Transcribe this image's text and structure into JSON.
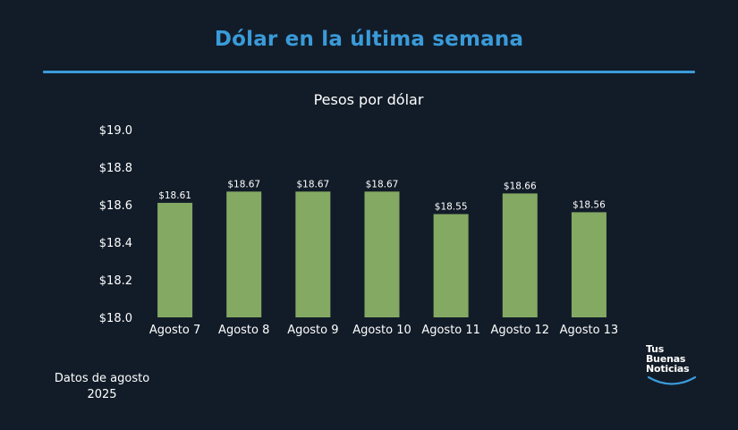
{
  "title": "Dólar en la última semana",
  "colors": {
    "background": "#121c28",
    "accent": "#3a9bd9",
    "bar": "#84a963",
    "text": "#ffffff"
  },
  "chart_data": {
    "type": "bar",
    "title": "Pesos por dólar",
    "xlabel": "",
    "ylabel": "",
    "categories": [
      "Agosto 7",
      "Agosto 8",
      "Agosto 9",
      "Agosto 10",
      "Agosto 11",
      "Agosto 12",
      "Agosto 13"
    ],
    "values": [
      18.61,
      18.67,
      18.67,
      18.67,
      18.55,
      18.66,
      18.56
    ],
    "value_labels": [
      "$18.61",
      "$18.67",
      "$18.67",
      "$18.67",
      "$18.55",
      "$18.66",
      "$18.56"
    ],
    "ylim": [
      18.0,
      19.0
    ],
    "yticks": [
      18.0,
      18.2,
      18.4,
      18.6,
      18.8,
      19.0
    ],
    "ytick_labels": [
      "$18.0",
      "$18.2",
      "$18.4",
      "$18.6",
      "$18.8",
      "$19.0"
    ],
    "grid": false,
    "legend": "none"
  },
  "footnote": {
    "line1": "Datos de agosto",
    "line2": "2025"
  },
  "logo": {
    "line1": "Tus",
    "line2": "Buenas",
    "line3": "Noticias"
  }
}
